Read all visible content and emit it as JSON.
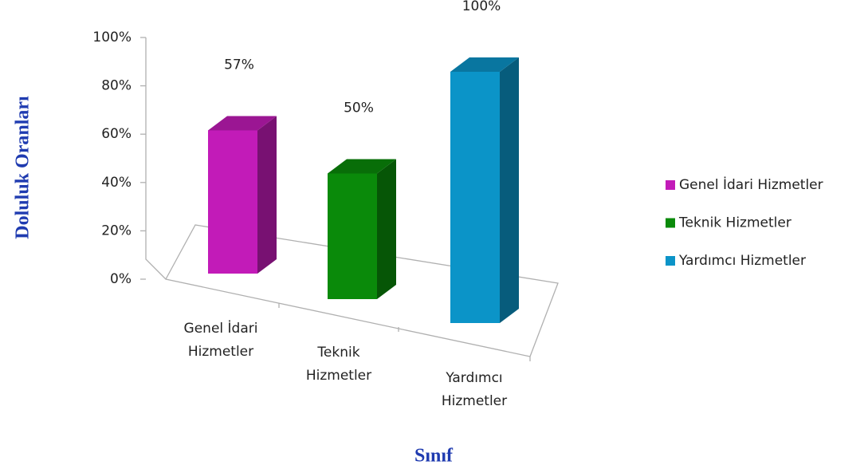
{
  "chart_data": {
    "type": "bar3d",
    "categories": [
      "Genel İdari Hizmetler",
      "Teknik Hizmetler",
      "Yardımcı Hizmetler"
    ],
    "values": [
      57,
      50,
      100
    ],
    "value_labels": [
      "57%",
      "50%",
      "100%"
    ],
    "colors": [
      "#c21bb8",
      "#0a8a0a",
      "#0b94c8"
    ],
    "ylim": [
      0,
      100
    ],
    "yticks": [
      {
        "value": 0,
        "label": "0%"
      },
      {
        "value": 20,
        "label": "20%"
      },
      {
        "value": 40,
        "label": "40%"
      },
      {
        "value": 60,
        "label": "60%"
      },
      {
        "value": 80,
        "label": "80%"
      },
      {
        "value": 100,
        "label": "100%"
      }
    ],
    "xlabel": "Sınıf",
    "ylabel": "Doluluk Oranları",
    "legend": "right"
  }
}
